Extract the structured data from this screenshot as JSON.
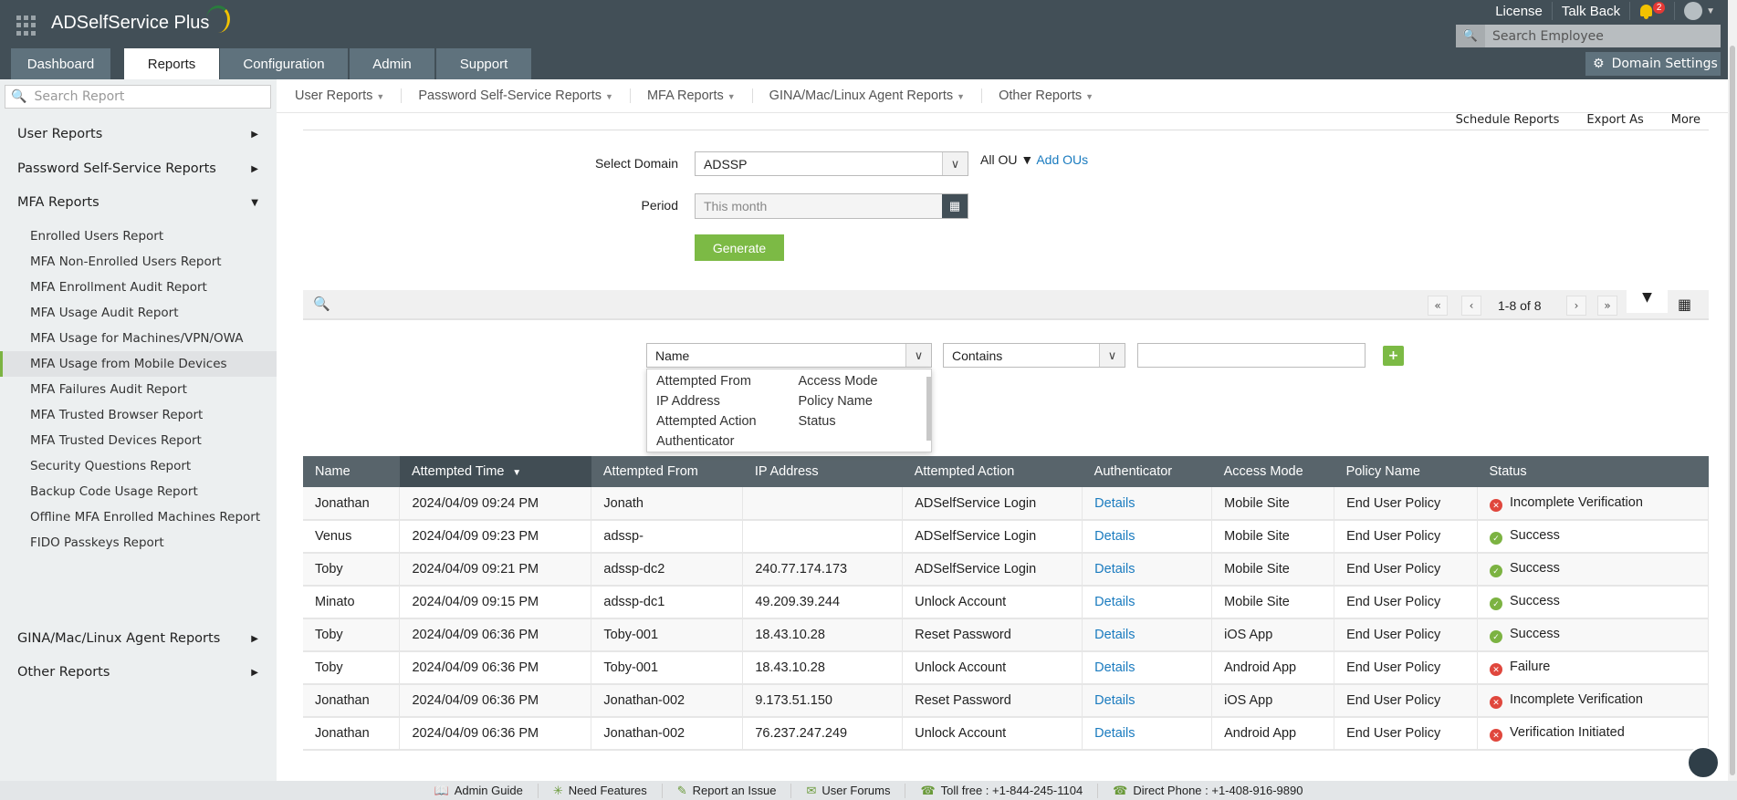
{
  "app": {
    "title": "ADSelfService Plus"
  },
  "tabs": [
    {
      "label": "Dashboard"
    },
    {
      "label": "Reports"
    },
    {
      "label": "Configuration"
    },
    {
      "label": "Admin"
    },
    {
      "label": "Support"
    }
  ],
  "top_links": {
    "license": "License",
    "talk_back": "Talk Back",
    "notifications": "2"
  },
  "employee_search": {
    "placeholder": "Search Employee"
  },
  "domain_settings": "Domain Settings",
  "sidebar": {
    "search_placeholder": "Search Report",
    "groups": [
      {
        "label": "User Reports"
      },
      {
        "label": "Password Self-Service Reports"
      },
      {
        "label": "MFA Reports"
      },
      {
        "label": "GINA/Mac/Linux Agent Reports"
      },
      {
        "label": "Other Reports"
      }
    ],
    "mfa_items": [
      "Enrolled Users Report",
      "MFA Non-Enrolled Users Report",
      "MFA Enrollment Audit Report",
      "MFA Usage Audit Report",
      "MFA Usage for Machines/VPN/OWA",
      "MFA Usage from Mobile Devices",
      "MFA Failures Audit Report",
      "MFA Trusted Browser Report",
      "MFA Trusted Devices Report",
      "Security Questions Report",
      "Backup Code Usage Report",
      "Offline MFA Enrolled Machines Report",
      "FIDO Passkeys Report"
    ],
    "active_item": "MFA Usage from Mobile Devices"
  },
  "subnav": [
    "User Reports",
    "Password Self-Service Reports",
    "MFA Reports",
    "GINA/Mac/Linux Agent Reports",
    "Other Reports"
  ],
  "tools": {
    "schedule": "Schedule Reports",
    "export": "Export As",
    "more": "More"
  },
  "form": {
    "domain_label": "Select Domain",
    "domain_value": "ADSSP",
    "all_ou": "All OU",
    "add_ous": "Add OUs",
    "period_label": "Period",
    "period_placeholder": "This month",
    "generate": "Generate"
  },
  "pagination": {
    "range": "1-8 of 8"
  },
  "filter": {
    "field": "Name",
    "operator": "Contains",
    "value": "",
    "options": [
      "Attempted From",
      "IP Address",
      "Attempted Action",
      "Authenticator",
      "Access Mode",
      "Policy Name",
      "Status"
    ]
  },
  "table": {
    "columns": [
      "Name",
      "Attempted Time",
      "Attempted From",
      "IP Address",
      "Attempted Action",
      "Authenticator",
      "Access Mode",
      "Policy Name",
      "Status"
    ],
    "sorted_column": "Attempted Time",
    "rows": [
      [
        "Jonathan",
        "2024/04/09 09:24 PM",
        "Jonath",
        "",
        "ADSelfService Login",
        "Details",
        "Mobile Site",
        "End User Policy",
        "Incomplete Verification"
      ],
      [
        "Venus",
        "2024/04/09 09:23 PM",
        "adssp-",
        "",
        "ADSelfService Login",
        "Details",
        "Mobile Site",
        "End User Policy",
        "Success"
      ],
      [
        "Toby",
        "2024/04/09 09:21 PM",
        "adssp-dc2",
        "240.77.174.173",
        "ADSelfService Login",
        "Details",
        "Mobile Site",
        "End User Policy",
        "Success"
      ],
      [
        "Minato",
        "2024/04/09 09:15 PM",
        "adssp-dc1",
        "49.209.39.244",
        "Unlock Account",
        "Details",
        "Mobile Site",
        "End User Policy",
        "Success"
      ],
      [
        "Toby",
        "2024/04/09 06:36 PM",
        "Toby-001",
        "18.43.10.28",
        "Reset Password",
        "Details",
        "iOS App",
        "End User Policy",
        "Success"
      ],
      [
        "Toby",
        "2024/04/09 06:36 PM",
        "Toby-001",
        "18.43.10.28",
        "Unlock Account",
        "Details",
        "Android App",
        "End User Policy",
        "Failure"
      ],
      [
        "Jonathan",
        "2024/04/09 06:36 PM",
        "Jonathan-002",
        "9.173.51.150",
        "Reset Password",
        "Details",
        "iOS App",
        "End User Policy",
        "Incomplete Verification"
      ],
      [
        "Jonathan",
        "2024/04/09 06:36 PM",
        "Jonathan-002",
        "76.237.247.249",
        "Unlock Account",
        "Details",
        "Android App",
        "End User Policy",
        "Verification Initiated"
      ]
    ]
  },
  "footer": [
    "Admin Guide",
    "Need Features",
    "Report an Issue",
    "User Forums",
    "Toll free : +1-844-245-1104",
    "Direct Phone : +1-408-916-9890"
  ],
  "colors": {
    "header": "#424f57",
    "accent": "#7cba45",
    "link": "#1a7bbf",
    "success": "#7cb342",
    "error": "#e0473d"
  }
}
